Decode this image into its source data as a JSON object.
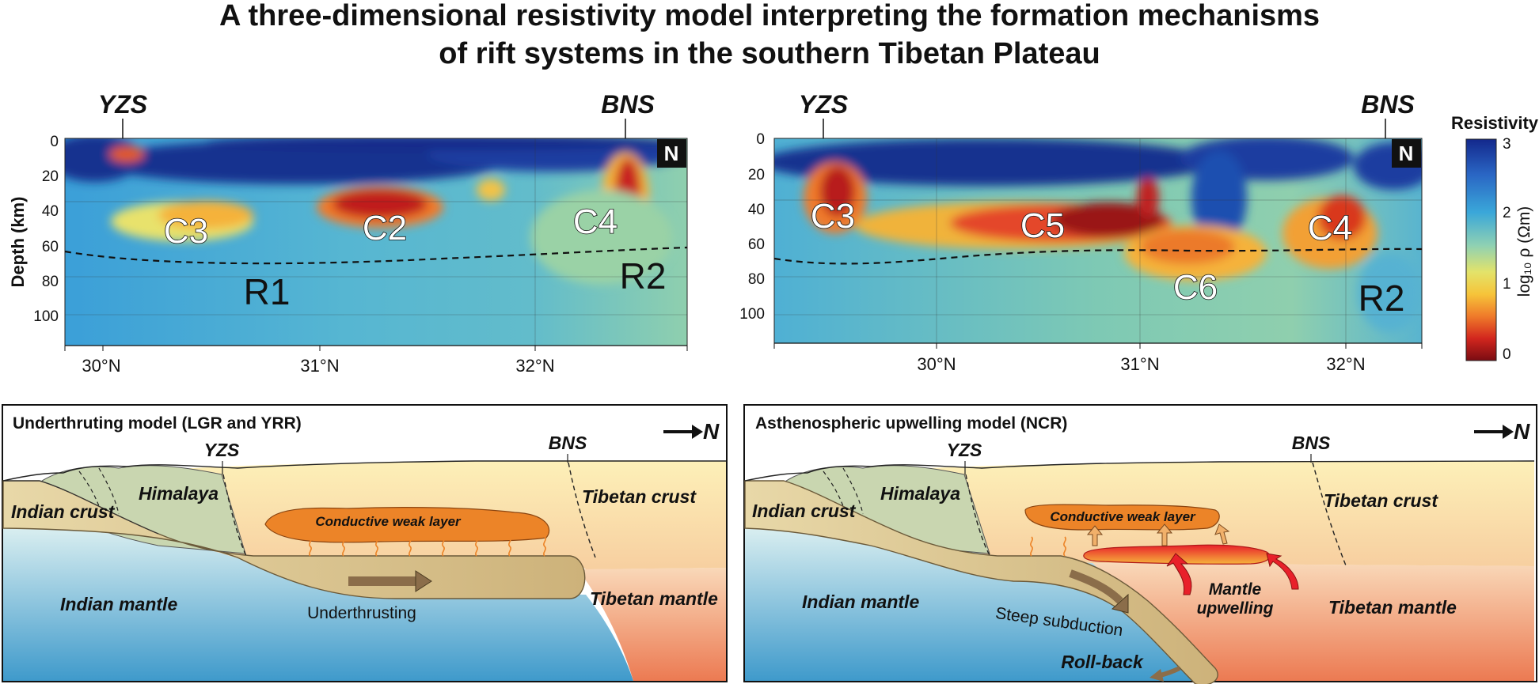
{
  "title_line1": "A three-dimensional resistivity model interpreting the formation mechanisms",
  "title_line2": "of rift systems in the southern Tibetan Plateau",
  "sections": [
    {
      "boundary_left": "YZS",
      "boundary_right": "BNS",
      "north": "N",
      "ylabel": "Depth (km)",
      "depth_ticks": [
        "0",
        "20",
        "40",
        "60",
        "80",
        "100"
      ],
      "lat_ticks": [
        "30°N",
        "31°N",
        "32°N"
      ],
      "anomalies": [
        "C3",
        "C2",
        "C4"
      ],
      "regions": [
        "R1",
        "R2"
      ]
    },
    {
      "boundary_left": "YZS",
      "boundary_right": "BNS",
      "north": "N",
      "depth_ticks": [
        "0",
        "20",
        "40",
        "60",
        "80",
        "100"
      ],
      "lat_ticks": [
        "30°N",
        "31°N",
        "32°N"
      ],
      "anomalies": [
        "C3",
        "C5",
        "C6",
        "C4"
      ],
      "regions": [
        "R2"
      ]
    }
  ],
  "colorbar": {
    "title": "Resistivity",
    "ticks": [
      "3",
      "2",
      "1",
      "0"
    ],
    "label": "log₁₀ ρ (Ωm)"
  },
  "models": [
    {
      "title": "Underthruting model (LGR and YRR)",
      "north": "N",
      "boundary_left": "YZS",
      "boundary_right": "BNS",
      "labels": {
        "indian_crust": "Indian crust",
        "himalaya": "Himalaya",
        "tibetan_crust": "Tibetan crust",
        "weak_layer": "Conductive weak layer",
        "indian_mantle": "Indian mantle",
        "tibetan_mantle": "Tibetan mantle",
        "process": "Underthrusting"
      }
    },
    {
      "title": "Asthenospheric upwelling model (NCR)",
      "north": "N",
      "boundary_left": "YZS",
      "boundary_right": "BNS",
      "labels": {
        "indian_crust": "Indian crust",
        "himalaya": "Himalaya",
        "tibetan_crust": "Tibetan crust",
        "weak_layer": "Conductive weak layer",
        "indian_mantle": "Indian mantle",
        "tibetan_mantle": "Tibetan mantle",
        "subduction": "Steep subduction",
        "upwelling_1": "Mantle",
        "upwelling_2": "upwelling",
        "rollback": "Roll-back"
      }
    }
  ]
}
